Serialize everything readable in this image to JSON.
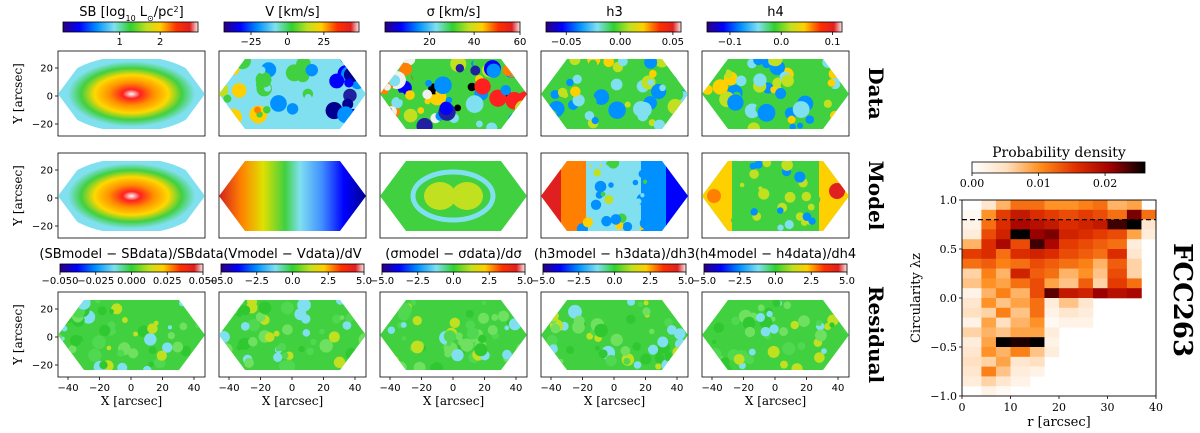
{
  "chart_data": {
    "type": "heatmap",
    "galaxy": "FCC263",
    "rows": [
      "Data",
      "Model",
      "Residual"
    ],
    "x_label": "X [arcsec]",
    "y_label": "Y [arcsec]",
    "x_ticks": [
      "−40",
      "−20",
      "0",
      "20",
      "40"
    ],
    "y_ticks": [
      "20",
      "0",
      "−20"
    ],
    "colorbars": [
      {
        "label": "SB [log$_{10}$ L$_\\odot$/pc$^2$]",
        "label_text": "SB [log10 L⊙/pc2]",
        "ticks": [
          "1",
          "2"
        ]
      },
      {
        "label": "V [km/s]",
        "ticks": [
          "−25",
          "0",
          "25"
        ]
      },
      {
        "label": "σ [km/s]",
        "ticks": [
          "20",
          "40",
          "60"
        ]
      },
      {
        "label": "h3",
        "ticks": [
          "−0.05",
          "0.00",
          "0.05"
        ]
      },
      {
        "label": "h4",
        "ticks": [
          "−0.1",
          "0.0",
          "0.1"
        ]
      }
    ],
    "residual_colorbars": [
      {
        "label": "(SBmodel − SBdata)/SBdata",
        "ticks": [
          "−0.050",
          "−0.025",
          "0.000",
          "0.025",
          "0.050"
        ]
      },
      {
        "label": "(Vmodel − Vdata)/dV",
        "ticks": [
          "−5.0",
          "−2.5",
          "0.0",
          "2.5",
          "5.0"
        ]
      },
      {
        "label": "(σmodel − σdata)/dσ",
        "ticks": [
          "−5.0",
          "−2.5",
          "0.0",
          "2.5",
          "5.0"
        ]
      },
      {
        "label": "(h3model − h3data)/dh3",
        "ticks": [
          "−5.0",
          "−2.5",
          "0.0",
          "2.5",
          "5.0"
        ]
      },
      {
        "label": "(h4model − h4data)/dh4",
        "ticks": [
          "−5.0",
          "−2.5",
          "0.0",
          "2.5",
          "5.0"
        ]
      }
    ],
    "circularity": {
      "colorbar_label": "Probability density",
      "colorbar_ticks": [
        "0.00",
        "0.01",
        "0.02"
      ],
      "vmax": 0.026,
      "x_label": "r [arcsec]",
      "y_label": "Circularity λz",
      "x_ticks": [
        "0",
        "10",
        "20",
        "30",
        "40"
      ],
      "y_ticks": [
        "1.0",
        "0.5",
        "0.0",
        "−0.5",
        "−1.0"
      ],
      "r_edges": [
        0,
        4,
        7,
        10,
        14,
        17,
        20,
        24,
        27,
        30,
        34,
        37,
        40
      ],
      "lambda_edges": [
        1.0,
        0.9,
        0.8,
        0.7,
        0.6,
        0.5,
        0.4,
        0.3,
        0.2,
        0.1,
        0.0,
        -0.1,
        -0.2,
        -0.3,
        -0.4,
        -0.5,
        -0.6,
        -0.7,
        -0.8,
        -0.9,
        -1.0
      ],
      "density": [
        [
          0.0,
          0.004,
          0.008,
          0.012,
          0.012,
          0.01,
          0.01,
          0.011,
          0.012,
          0.008,
          0.009,
          0.0
        ],
        [
          0.001,
          0.01,
          0.015,
          0.018,
          0.016,
          0.015,
          0.014,
          0.015,
          0.014,
          0.012,
          0.022,
          0.012
        ],
        [
          0.002,
          0.012,
          0.016,
          0.02,
          0.019,
          0.018,
          0.016,
          0.017,
          0.018,
          0.024,
          0.026,
          0.004
        ],
        [
          0.003,
          0.014,
          0.017,
          0.026,
          0.021,
          0.022,
          0.017,
          0.016,
          0.015,
          0.014,
          0.009,
          0.003
        ],
        [
          0.008,
          0.016,
          0.02,
          0.014,
          0.024,
          0.02,
          0.015,
          0.014,
          0.013,
          0.012,
          0.003,
          0.0
        ],
        [
          0.015,
          0.016,
          0.012,
          0.016,
          0.017,
          0.016,
          0.014,
          0.013,
          0.012,
          0.016,
          0.004,
          0.0
        ],
        [
          0.012,
          0.013,
          0.011,
          0.012,
          0.014,
          0.013,
          0.012,
          0.011,
          0.008,
          0.013,
          0.006,
          0.0
        ],
        [
          0.006,
          0.011,
          0.008,
          0.017,
          0.013,
          0.012,
          0.008,
          0.01,
          0.007,
          0.014,
          0.006,
          0.0
        ],
        [
          0.007,
          0.01,
          0.009,
          0.012,
          0.014,
          0.009,
          0.007,
          0.013,
          0.006,
          0.015,
          0.012,
          0.0
        ],
        [
          0.002,
          0.008,
          0.011,
          0.008,
          0.014,
          0.023,
          0.018,
          0.017,
          0.021,
          0.019,
          0.02,
          0.0
        ],
        [
          0.004,
          0.01,
          0.007,
          0.009,
          0.012,
          0.003,
          0.007,
          0.004,
          0.0,
          0.0,
          0.0,
          0.0
        ],
        [
          0.005,
          0.006,
          0.011,
          0.007,
          0.012,
          0.002,
          0.004,
          0.003,
          0.0,
          0.0,
          0.0,
          0.0
        ],
        [
          0.002,
          0.009,
          0.005,
          0.008,
          0.01,
          0.001,
          0.002,
          0.002,
          0.0,
          0.0,
          0.0,
          0.0
        ],
        [
          0.006,
          0.008,
          0.007,
          0.009,
          0.009,
          0.003,
          0.0,
          0.0,
          0.0,
          0.0,
          0.0,
          0.0
        ],
        [
          0.003,
          0.009,
          0.026,
          0.025,
          0.026,
          0.002,
          0.0,
          0.0,
          0.0,
          0.0,
          0.0,
          0.0
        ],
        [
          0.004,
          0.01,
          0.008,
          0.011,
          0.007,
          0.003,
          0.0,
          0.0,
          0.0,
          0.0,
          0.0,
          0.0
        ],
        [
          0.005,
          0.006,
          0.009,
          0.004,
          0.005,
          0.0,
          0.0,
          0.0,
          0.0,
          0.0,
          0.0,
          0.0
        ],
        [
          0.004,
          0.011,
          0.007,
          0.003,
          0.002,
          0.0,
          0.0,
          0.0,
          0.0,
          0.0,
          0.0,
          0.0
        ],
        [
          0.003,
          0.006,
          0.004,
          0.002,
          0.0,
          0.0,
          0.0,
          0.0,
          0.0,
          0.0,
          0.0,
          0.0
        ],
        [
          0.0,
          0.002,
          0.001,
          0.0,
          0.0,
          0.0,
          0.0,
          0.0,
          0.0,
          0.0,
          0.0,
          0.0
        ]
      ],
      "dashed_line_lambda": 0.8
    }
  }
}
